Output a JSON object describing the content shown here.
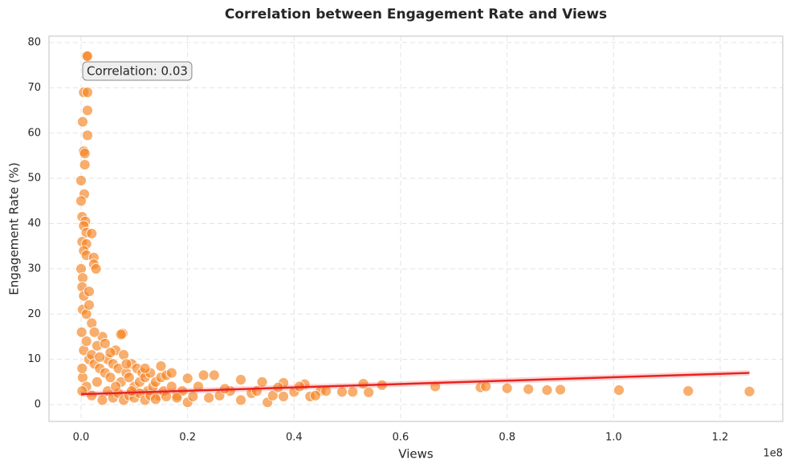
{
  "chart_data": {
    "type": "scatter",
    "title": "Correlation between Engagement Rate and Views",
    "x_label": "Views",
    "y_label": "Engagement Rate (%)",
    "x_offset_label": "1e8",
    "annotation": "Correlation: 0.03",
    "color": "#f58220",
    "grid": true,
    "xlim": [
      -6030000,
      131760000
    ],
    "ylim": [
      -3.72,
      81.42
    ],
    "xticks": [
      {
        "value": 0,
        "label": "0.0"
      },
      {
        "value": 20000000,
        "label": "0.2"
      },
      {
        "value": 40000000,
        "label": "0.4"
      },
      {
        "value": 60000000,
        "label": "0.6"
      },
      {
        "value": 80000000,
        "label": "0.8"
      },
      {
        "value": 100000000,
        "label": "1.0"
      },
      {
        "value": 120000000,
        "label": "1.2"
      }
    ],
    "yticks": [
      0,
      10,
      20,
      30,
      40,
      50,
      60,
      70,
      80
    ],
    "x": [
      1000000,
      1200000,
      500000,
      1200000,
      1200000,
      300000,
      1200000,
      500000,
      700000,
      700000,
      0,
      600000,
      0,
      200000,
      800000,
      500000,
      1000000,
      2000000,
      200000,
      1000000,
      500000,
      1000000,
      2400000,
      2400000,
      2800000,
      0,
      300000,
      200000,
      500000,
      1500000,
      300000,
      1000000,
      2000000,
      7800000,
      7500000,
      20000000,
      23000000,
      25000000,
      30000000,
      34000000,
      38000000,
      42000000,
      45000000,
      49000000,
      51000000,
      53000000,
      54000000,
      56500000,
      66500000,
      75000000,
      76000000,
      80000000,
      84000000,
      87500000,
      90000000,
      101000000,
      114000000,
      125500000,
      500000,
      1000000,
      1500000,
      2000000,
      2500000,
      3000000,
      3500000,
      4000000,
      4500000,
      5000000,
      5500000,
      6000000,
      6500000,
      7000000,
      7500000,
      8000000,
      8500000,
      9000000,
      9500000,
      10000000,
      10500000,
      11000000,
      11500000,
      12000000,
      12500000,
      13000000,
      13500000,
      14000000,
      14500000,
      15000000,
      15500000,
      16000000,
      17000000,
      18000000,
      19000000,
      300000,
      1000000,
      2000000,
      3000000,
      4000000,
      5000000,
      6000000,
      7000000,
      8000000,
      9000000,
      10000000,
      11000000,
      12000000,
      13000000,
      14000000,
      16000000,
      18000000,
      20000000,
      21000000,
      24000000,
      26000000,
      28000000,
      30000000,
      32000000,
      35000000,
      36000000,
      38000000,
      40000000,
      43000000,
      44000000,
      200000,
      200000,
      100000,
      1500000,
      2500000,
      3500000,
      4500000,
      5500000,
      6500000,
      8500000,
      9500000,
      12000000,
      15000000,
      17000000,
      22000000,
      27000000,
      33000000,
      37000000,
      41000000,
      46000000
    ],
    "values": [
      77,
      77,
      69,
      69,
      65,
      62.5,
      59.5,
      56,
      55.5,
      53,
      49.5,
      46.5,
      45,
      41.5,
      40.5,
      39.5,
      38,
      37.8,
      36,
      35.5,
      34,
      33,
      32.5,
      31,
      30,
      30,
      28,
      26,
      24,
      25,
      21,
      20,
      18,
      15.7,
      15.5,
      5.8,
      6.5,
      6.5,
      5.5,
      5,
      4.8,
      4.5,
      3,
      2.8,
      2.8,
      4.6,
      2.7,
      4.3,
      4,
      3.8,
      4,
      3.6,
      3.4,
      3.2,
      3.3,
      3.2,
      3,
      2.9,
      12,
      14,
      10,
      11,
      9,
      13,
      8,
      15,
      7,
      10,
      6,
      9,
      12,
      8,
      5,
      11,
      7,
      6,
      9,
      4,
      8,
      5,
      7,
      6,
      3,
      7,
      4,
      5,
      2,
      6,
      3,
      6.5,
      4,
      2,
      3,
      6,
      4,
      2,
      5,
      1,
      3,
      1.5,
      2.5,
      1,
      2,
      1.5,
      2.5,
      1,
      2,
      1.2,
      1.8,
      1.5,
      0.5,
      1.8,
      1.5,
      2,
      3,
      1,
      2.5,
      0.5,
      2,
      1.8,
      2.8,
      1.8,
      2,
      3,
      8,
      16,
      22,
      16,
      10.5,
      13.5,
      11.5,
      4,
      9,
      3,
      8,
      8.5,
      7,
      4,
      3.5,
      3,
      3.8,
      4,
      3
    ],
    "trend": {
      "color": "#e8231f",
      "x": [
        0,
        125500000
      ],
      "values": [
        2.3,
        7.0
      ]
    }
  }
}
